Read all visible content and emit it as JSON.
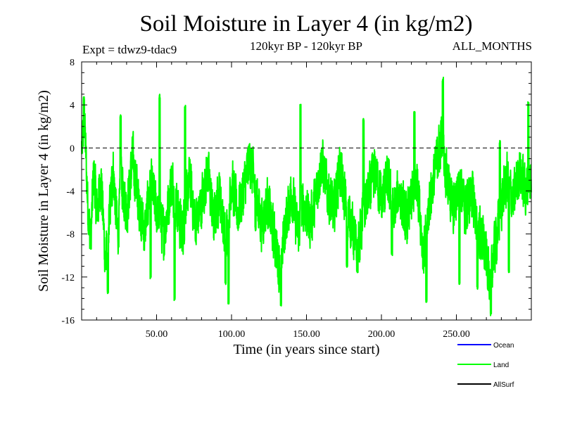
{
  "header": {
    "title": "Soil Moisture in Layer 4 (in kg/m2)",
    "experiment": "Expt = tdwz9-tdac9",
    "period": "120kyr BP - 120kyr BP",
    "months": "ALL_MONTHS"
  },
  "chart_data": {
    "type": "line",
    "title": "Soil Moisture in Layer 4 (in kg/m2)",
    "xlabel": "Time (in years since start)",
    "ylabel": "Soil Moisture in Layer 4 (in kg/m2)",
    "xlim": [
      0,
      300
    ],
    "ylim": [
      -16,
      8
    ],
    "x_ticks": [
      50,
      100,
      150,
      200,
      250
    ],
    "x_tick_labels": [
      "50.00",
      "100.00",
      "150.00",
      "200.00",
      "250.00"
    ],
    "y_ticks": [
      8,
      4,
      0,
      -4,
      -8,
      -12,
      -16
    ],
    "y_tick_labels": [
      "8",
      "4",
      "0",
      "-4",
      "-8",
      "-12",
      "-16"
    ],
    "zero_line": "dashed",
    "grid": false,
    "legend_position": "bottom-right",
    "series": [
      {
        "name": "Ocean",
        "color": "#0000ff",
        "values": []
      },
      {
        "name": "Land",
        "color": "#00ff00",
        "x_step_years": 0.0833,
        "anchors": [
          [
            0,
            0
          ],
          [
            2,
            2
          ],
          [
            4,
            -5
          ],
          [
            6,
            -9
          ],
          [
            8,
            -2
          ],
          [
            10,
            -6
          ],
          [
            13,
            -3
          ],
          [
            16,
            -11
          ],
          [
            18,
            -7
          ],
          [
            21,
            -2
          ],
          [
            24,
            -8
          ],
          [
            27,
            -3
          ],
          [
            30,
            -6
          ],
          [
            34,
            -1
          ],
          [
            38,
            -5
          ],
          [
            42,
            -8
          ],
          [
            46,
            -3
          ],
          [
            50,
            -6
          ],
          [
            55,
            -8
          ],
          [
            60,
            -3
          ],
          [
            63,
            -5
          ],
          [
            67,
            -8
          ],
          [
            72,
            -3
          ],
          [
            76,
            -7
          ],
          [
            80,
            -5
          ],
          [
            84,
            -2
          ],
          [
            88,
            -7
          ],
          [
            92,
            -4
          ],
          [
            96,
            -9
          ],
          [
            100,
            -3
          ],
          [
            104,
            -6
          ],
          [
            108,
            -4
          ],
          [
            112,
            -1
          ],
          [
            116,
            -4
          ],
          [
            120,
            -7
          ],
          [
            124,
            -5
          ],
          [
            128,
            -8
          ],
          [
            132,
            -11
          ],
          [
            136,
            -7
          ],
          [
            140,
            -4
          ],
          [
            144,
            -8
          ],
          [
            148,
            -5
          ],
          [
            152,
            -7
          ],
          [
            156,
            -5
          ],
          [
            160,
            -1
          ],
          [
            164,
            -4
          ],
          [
            168,
            -6
          ],
          [
            172,
            -2
          ],
          [
            176,
            -5
          ],
          [
            180,
            -7
          ],
          [
            184,
            -10
          ],
          [
            188,
            -6
          ],
          [
            192,
            -4
          ],
          [
            196,
            -2
          ],
          [
            200,
            -5
          ],
          [
            204,
            -3
          ],
          [
            208,
            -6
          ],
          [
            212,
            -4
          ],
          [
            216,
            -7
          ],
          [
            220,
            -5
          ],
          [
            224,
            -3
          ],
          [
            228,
            -10
          ],
          [
            232,
            -5
          ],
          [
            236,
            -2
          ],
          [
            240,
            1
          ],
          [
            244,
            -3
          ],
          [
            248,
            -6
          ],
          [
            252,
            -3
          ],
          [
            256,
            -6
          ],
          [
            260,
            -4
          ],
          [
            264,
            -7
          ],
          [
            268,
            -9
          ],
          [
            272,
            -12
          ],
          [
            276,
            -9
          ],
          [
            280,
            -5
          ],
          [
            284,
            -3
          ],
          [
            288,
            -5
          ],
          [
            292,
            -2
          ],
          [
            296,
            -4
          ],
          [
            300,
            -3
          ]
        ],
        "extremes": [
          [
            1.5,
            4.6
          ],
          [
            17.5,
            -13.4
          ],
          [
            26,
            3
          ],
          [
            46,
            -12
          ],
          [
            52,
            4.8
          ],
          [
            62,
            -14
          ],
          [
            69,
            3.8
          ],
          [
            96,
            -12.5
          ],
          [
            98,
            -14.3
          ],
          [
            116,
            -7.5
          ],
          [
            133,
            -14.6
          ],
          [
            146,
            3.9
          ],
          [
            177,
            -11
          ],
          [
            188,
            2.6
          ],
          [
            207,
            -9.8
          ],
          [
            222,
            3.3
          ],
          [
            230,
            -14.3
          ],
          [
            241,
            6.4
          ],
          [
            252,
            -12.5
          ],
          [
            264,
            -13
          ],
          [
            273,
            -15.5
          ],
          [
            279,
            0.5
          ],
          [
            285,
            -11.5
          ],
          [
            298,
            4.1
          ]
        ]
      },
      {
        "name": "AllSurf",
        "color": "#000000",
        "values": []
      }
    ]
  }
}
